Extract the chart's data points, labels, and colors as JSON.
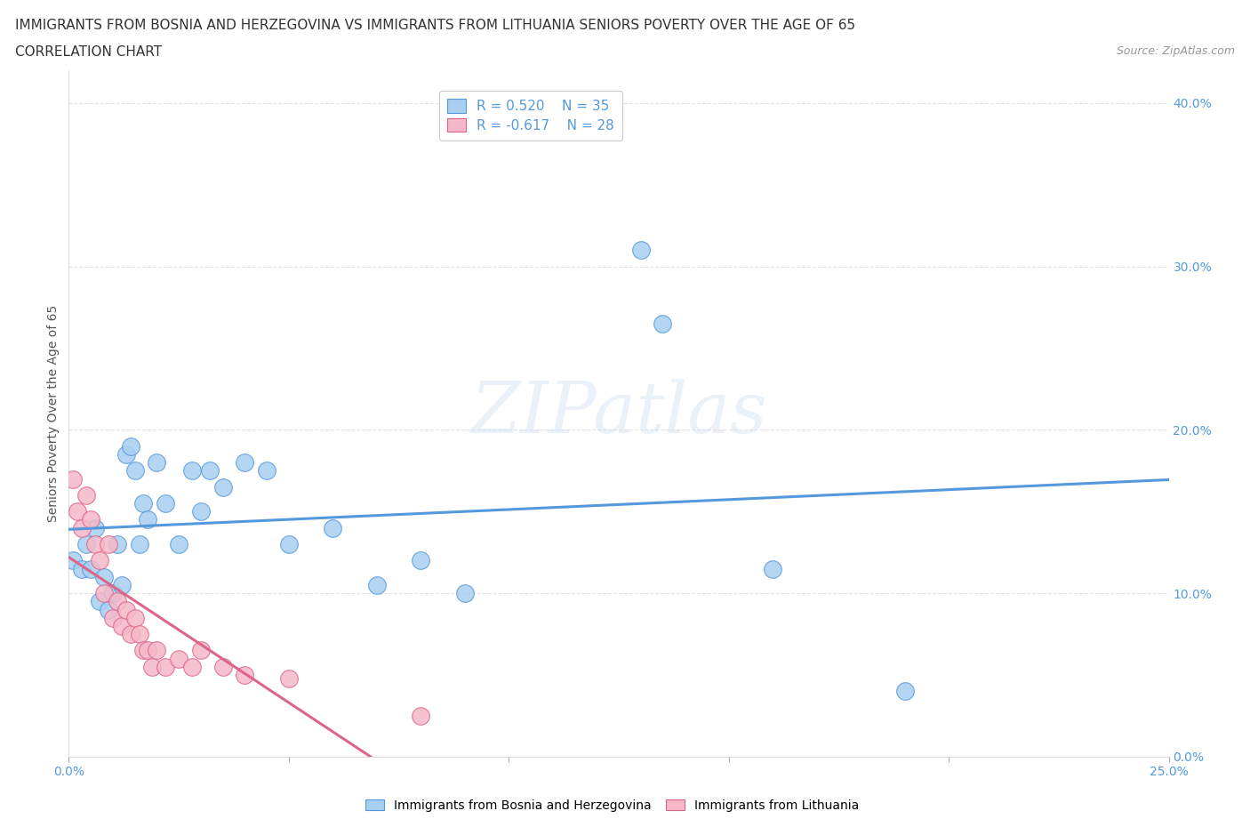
{
  "title_line1": "IMMIGRANTS FROM BOSNIA AND HERZEGOVINA VS IMMIGRANTS FROM LITHUANIA SENIORS POVERTY OVER THE AGE OF 65",
  "title_line2": "CORRELATION CHART",
  "source_text": "Source: ZipAtlas.com",
  "watermark": "ZIPatlas",
  "ylabel": "Seniors Poverty Over the Age of 65",
  "xlim": [
    0.0,
    0.25
  ],
  "ylim": [
    0.0,
    0.42
  ],
  "r_bosnia": 0.52,
  "n_bosnia": 35,
  "r_lithuania": -0.617,
  "n_lithuania": 28,
  "color_bosnia": "#a8cff0",
  "color_lithuania": "#f5b8c8",
  "line_color_bosnia": "#5599dd",
  "line_color_lithuania": "#dd6688",
  "bosnia_x": [
    0.001,
    0.003,
    0.004,
    0.005,
    0.006,
    0.007,
    0.008,
    0.009,
    0.01,
    0.011,
    0.012,
    0.013,
    0.014,
    0.015,
    0.016,
    0.017,
    0.018,
    0.02,
    0.022,
    0.025,
    0.028,
    0.03,
    0.032,
    0.035,
    0.04,
    0.045,
    0.05,
    0.06,
    0.07,
    0.08,
    0.09,
    0.13,
    0.16,
    0.135,
    0.19
  ],
  "bosnia_y": [
    0.12,
    0.115,
    0.13,
    0.115,
    0.14,
    0.095,
    0.11,
    0.09,
    0.1,
    0.13,
    0.105,
    0.185,
    0.19,
    0.175,
    0.13,
    0.155,
    0.145,
    0.18,
    0.155,
    0.13,
    0.175,
    0.15,
    0.175,
    0.165,
    0.18,
    0.175,
    0.13,
    0.14,
    0.105,
    0.12,
    0.1,
    0.31,
    0.115,
    0.265,
    0.04
  ],
  "lithuania_x": [
    0.001,
    0.002,
    0.003,
    0.004,
    0.005,
    0.006,
    0.007,
    0.008,
    0.009,
    0.01,
    0.011,
    0.012,
    0.013,
    0.014,
    0.015,
    0.016,
    0.017,
    0.018,
    0.019,
    0.02,
    0.022,
    0.025,
    0.028,
    0.03,
    0.035,
    0.04,
    0.05,
    0.08
  ],
  "lithuania_y": [
    0.17,
    0.15,
    0.14,
    0.16,
    0.145,
    0.13,
    0.12,
    0.1,
    0.13,
    0.085,
    0.095,
    0.08,
    0.09,
    0.075,
    0.085,
    0.075,
    0.065,
    0.065,
    0.055,
    0.065,
    0.055,
    0.06,
    0.055,
    0.065,
    0.055,
    0.05,
    0.048,
    0.025
  ],
  "grid_color": "#dddddd",
  "title_fontsize": 11,
  "subtitle_fontsize": 11,
  "axis_label_fontsize": 10,
  "tick_fontsize": 10,
  "legend_fontsize": 11,
  "watermark_color": "#c8d8ec",
  "watermark_alpha": 0.35
}
